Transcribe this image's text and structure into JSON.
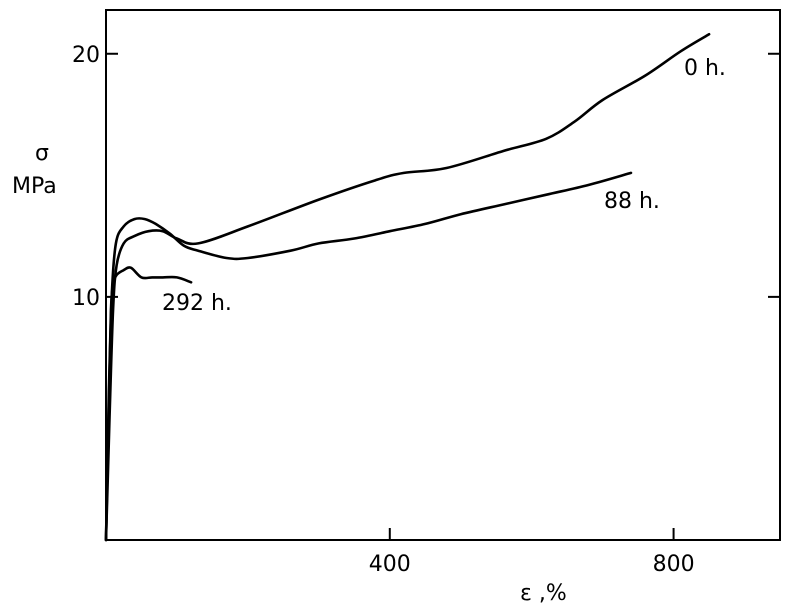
{
  "chart_data": {
    "type": "line",
    "ylabel_symbol": "σ",
    "ylabel_unit": "MPa",
    "xlabel": "ε ,%",
    "xlim": [
      0,
      950
    ],
    "ylim": [
      0,
      21.8
    ],
    "x_ticks": [
      {
        "value": 400,
        "label": "400"
      },
      {
        "value": 800,
        "label": "800"
      }
    ],
    "y_ticks": [
      {
        "value": 10,
        "label": "10"
      },
      {
        "value": 20,
        "label": "20"
      }
    ],
    "grid": false,
    "legend": "none",
    "line_color": "#000000",
    "series": [
      {
        "name": "0 h.",
        "x": [
          0,
          5,
          10,
          15,
          25,
          40,
          60,
          80,
          100,
          130,
          200,
          300,
          380,
          420,
          480,
          560,
          620,
          660,
          700,
          760,
          810,
          850
        ],
        "y": [
          0,
          5,
          9.5,
          11.3,
          12.2,
          12.5,
          12.7,
          12.7,
          12.4,
          12.2,
          12.9,
          14.0,
          14.8,
          15.1,
          15.3,
          16.0,
          16.5,
          17.2,
          18.1,
          19.1,
          20.1,
          20.8
        ]
      },
      {
        "name": "88 h.",
        "x": [
          0,
          4,
          8,
          14,
          25,
          40,
          55,
          70,
          90,
          110,
          130,
          170,
          200,
          260,
          300,
          350,
          400,
          450,
          500,
          560,
          620,
          680,
          740
        ],
        "y": [
          0,
          5.5,
          10,
          12.2,
          12.9,
          13.2,
          13.2,
          13.0,
          12.6,
          12.1,
          11.9,
          11.6,
          11.6,
          11.9,
          12.2,
          12.4,
          12.7,
          13.0,
          13.4,
          13.8,
          14.2,
          14.6,
          15.1
        ]
      },
      {
        "name": "292 h.",
        "x": [
          0,
          4,
          7,
          10,
          15,
          25,
          35,
          50,
          65,
          80,
          100,
          120
        ],
        "y": [
          0,
          6,
          9.5,
          10.5,
          10.9,
          11.1,
          11.2,
          10.8,
          10.8,
          10.8,
          10.8,
          10.6
        ]
      }
    ]
  }
}
